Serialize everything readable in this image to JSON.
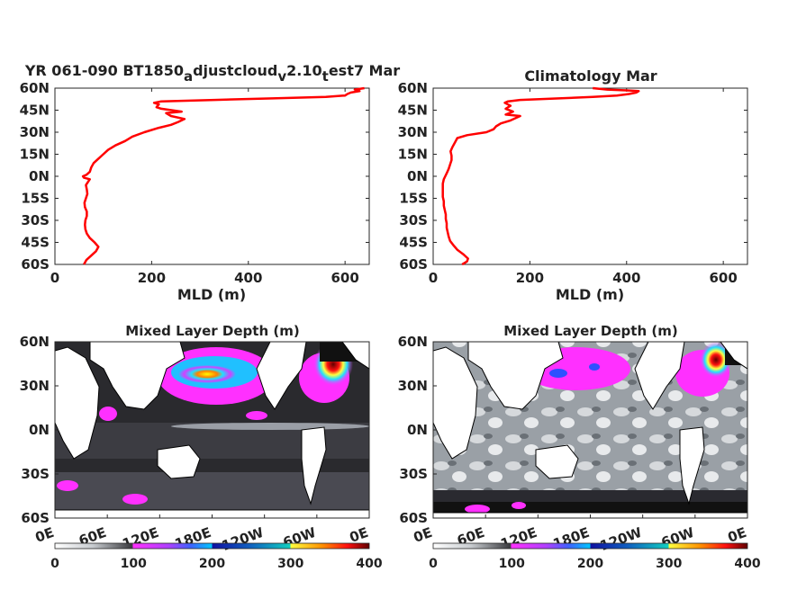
{
  "chart_data": [
    {
      "type": "line",
      "title": "YR 061-090 BT1850",
      "title_parts": [
        "YR 061-090 BT1850",
        "a",
        "djustcloud",
        "v",
        "2.10",
        "t",
        "est7 Mar"
      ],
      "xlabel": "MLD (m)",
      "ylabel": "",
      "xlim": [
        0,
        650
      ],
      "xticks": [
        0,
        200,
        400,
        600
      ],
      "ylim": [
        -60,
        60
      ],
      "yticks": [
        60,
        45,
        30,
        15,
        0,
        -15,
        -30,
        -45,
        -60
      ],
      "ytick_labels": [
        "60N",
        "45N",
        "30N",
        "15N",
        "0N",
        "15S",
        "30S",
        "45S",
        "60S"
      ],
      "series": [
        {
          "color": "#ff0000",
          "points": [
            [
              60,
              -60
            ],
            [
              65,
              -57
            ],
            [
              75,
              -54
            ],
            [
              85,
              -51
            ],
            [
              90,
              -48
            ],
            [
              82,
              -45
            ],
            [
              72,
              -42
            ],
            [
              66,
              -39
            ],
            [
              63,
              -36
            ],
            [
              62,
              -33
            ],
            [
              63,
              -30
            ],
            [
              66,
              -27
            ],
            [
              66,
              -24
            ],
            [
              62,
              -21
            ],
            [
              61,
              -18
            ],
            [
              64,
              -15
            ],
            [
              67,
              -12
            ],
            [
              66,
              -9
            ],
            [
              64,
              -6
            ],
            [
              70,
              -3
            ],
            [
              72,
              -2
            ],
            [
              60,
              -1
            ],
            [
              58,
              0
            ],
            [
              65,
              1
            ],
            [
              72,
              3
            ],
            [
              75,
              6
            ],
            [
              80,
              9
            ],
            [
              90,
              12
            ],
            [
              100,
              15
            ],
            [
              110,
              18
            ],
            [
              125,
              21
            ],
            [
              145,
              24
            ],
            [
              160,
              27
            ],
            [
              185,
              30
            ],
            [
              215,
              33
            ],
            [
              240,
              35
            ],
            [
              255,
              37
            ],
            [
              268,
              39
            ],
            [
              240,
              41
            ],
            [
              230,
              43
            ],
            [
              262,
              44
            ],
            [
              220,
              46
            ],
            [
              210,
              47
            ],
            [
              215,
              49
            ],
            [
              205,
              50
            ],
            [
              220,
              51
            ],
            [
              330,
              52
            ],
            [
              450,
              53
            ],
            [
              560,
              54
            ],
            [
              600,
              55
            ],
            [
              605,
              56
            ],
            [
              612,
              57
            ],
            [
              630,
              58
            ],
            [
              620,
              59
            ],
            [
              640,
              60
            ]
          ]
        }
      ]
    },
    {
      "type": "line",
      "title": "Climatology Mar",
      "xlabel": "MLD (m)",
      "ylabel": "",
      "xlim": [
        0,
        650
      ],
      "xticks": [
        0,
        200,
        400,
        600
      ],
      "ylim": [
        -60,
        60
      ],
      "yticks": [
        60,
        45,
        30,
        15,
        0,
        -15,
        -30,
        -45,
        -60
      ],
      "ytick_labels": [
        "60N",
        "45N",
        "30N",
        "15N",
        "0N",
        "15S",
        "30S",
        "45S",
        "60S"
      ],
      "series": [
        {
          "color": "#ff0000",
          "points": [
            [
              60,
              -60
            ],
            [
              70,
              -58
            ],
            [
              72,
              -56
            ],
            [
              62,
              -53
            ],
            [
              50,
              -50
            ],
            [
              42,
              -47
            ],
            [
              35,
              -44
            ],
            [
              32,
              -41
            ],
            [
              30,
              -38
            ],
            [
              28,
              -35
            ],
            [
              28,
              -32
            ],
            [
              26,
              -29
            ],
            [
              26,
              -26
            ],
            [
              24,
              -23
            ],
            [
              22,
              -20
            ],
            [
              22,
              -17
            ],
            [
              20,
              -14
            ],
            [
              20,
              -11
            ],
            [
              20,
              -8
            ],
            [
              20,
              -5
            ],
            [
              22,
              -2
            ],
            [
              25,
              0
            ],
            [
              28,
              2
            ],
            [
              32,
              5
            ],
            [
              35,
              8
            ],
            [
              38,
              11
            ],
            [
              38,
              14
            ],
            [
              36,
              17
            ],
            [
              40,
              20
            ],
            [
              45,
              23
            ],
            [
              50,
              26
            ],
            [
              70,
              28
            ],
            [
              110,
              30
            ],
            [
              125,
              32
            ],
            [
              130,
              34
            ],
            [
              140,
              36
            ],
            [
              160,
              38
            ],
            [
              180,
              41
            ],
            [
              150,
              42
            ],
            [
              165,
              44
            ],
            [
              150,
              46
            ],
            [
              160,
              48
            ],
            [
              148,
              50
            ],
            [
              155,
              51
            ],
            [
              180,
              52
            ],
            [
              260,
              53
            ],
            [
              330,
              54
            ],
            [
              380,
              55
            ],
            [
              405,
              56
            ],
            [
              420,
              57
            ],
            [
              425,
              58
            ],
            [
              400,
              58.5
            ],
            [
              360,
              59
            ],
            [
              330,
              60
            ]
          ]
        }
      ]
    },
    {
      "type": "heatmap",
      "title": "Mixed Layer Depth (m)",
      "ytick_labels": [
        "60N",
        "30N",
        "0N",
        "30S",
        "60S"
      ],
      "xtick_labels": [
        "0E",
        "60E",
        "120E",
        "180E",
        "120W",
        "60W",
        "0E"
      ],
      "colorbar_ticks": [
        "0",
        "100",
        "200",
        "300",
        "400"
      ]
    },
    {
      "type": "heatmap",
      "title": "Mixed Layer Depth (m)",
      "ytick_labels": [
        "60N",
        "30N",
        "0N",
        "30S",
        "60S"
      ],
      "xtick_labels": [
        "0E",
        "60E",
        "120E",
        "180E",
        "120W",
        "60W",
        "0E"
      ],
      "colorbar_ticks": [
        "0",
        "100",
        "200",
        "300",
        "400"
      ]
    }
  ]
}
